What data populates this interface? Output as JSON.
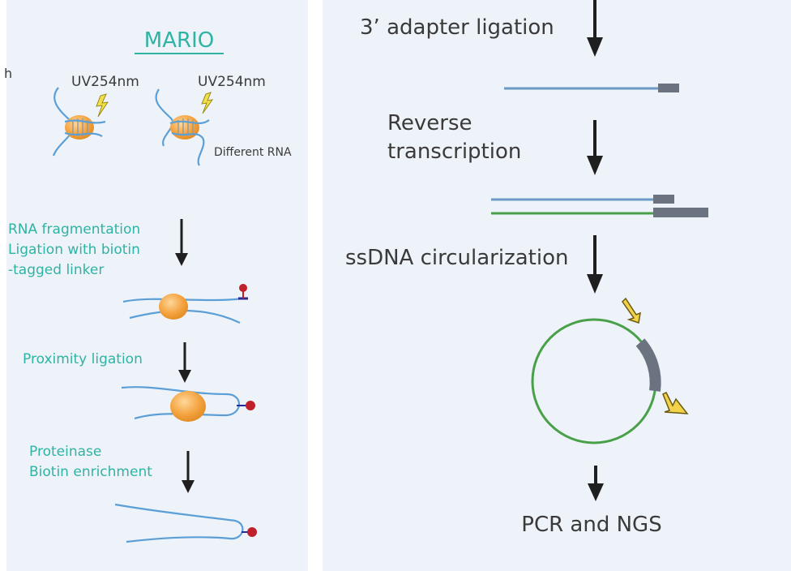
{
  "left": {
    "title": "MARIO",
    "stray_mark": "h",
    "uv_label_1": "UV254nm",
    "uv_label_2": "UV254nm",
    "different_rna": "Different RNA",
    "step1_line1": "RNA fragmentation",
    "step1_line2": "Ligation with biotin",
    "step1_line3": "-tagged linker",
    "step2": "Proximity ligation",
    "step3_line1": "Proteinase",
    "step3_line2": "Biotin enrichment"
  },
  "right": {
    "step_adapter": "3’ adapter ligation",
    "step_rt_line1": "Reverse",
    "step_rt_line2": "transcription",
    "step_circ": "ssDNA circularization",
    "step_pcr": "PCR and NGS"
  },
  "colors": {
    "panel_bg": "#eef3f9",
    "teal_text": "#2fb3a4",
    "rna_blue": "#5b9fd6",
    "protein_orange": "#f4a340",
    "biotin_red": "#c0202a",
    "dna_green": "#4aa04a",
    "adapter_gray": "#6b7280",
    "arrow": "#1f1f1f",
    "primer_yellow": "#f2d24b"
  }
}
